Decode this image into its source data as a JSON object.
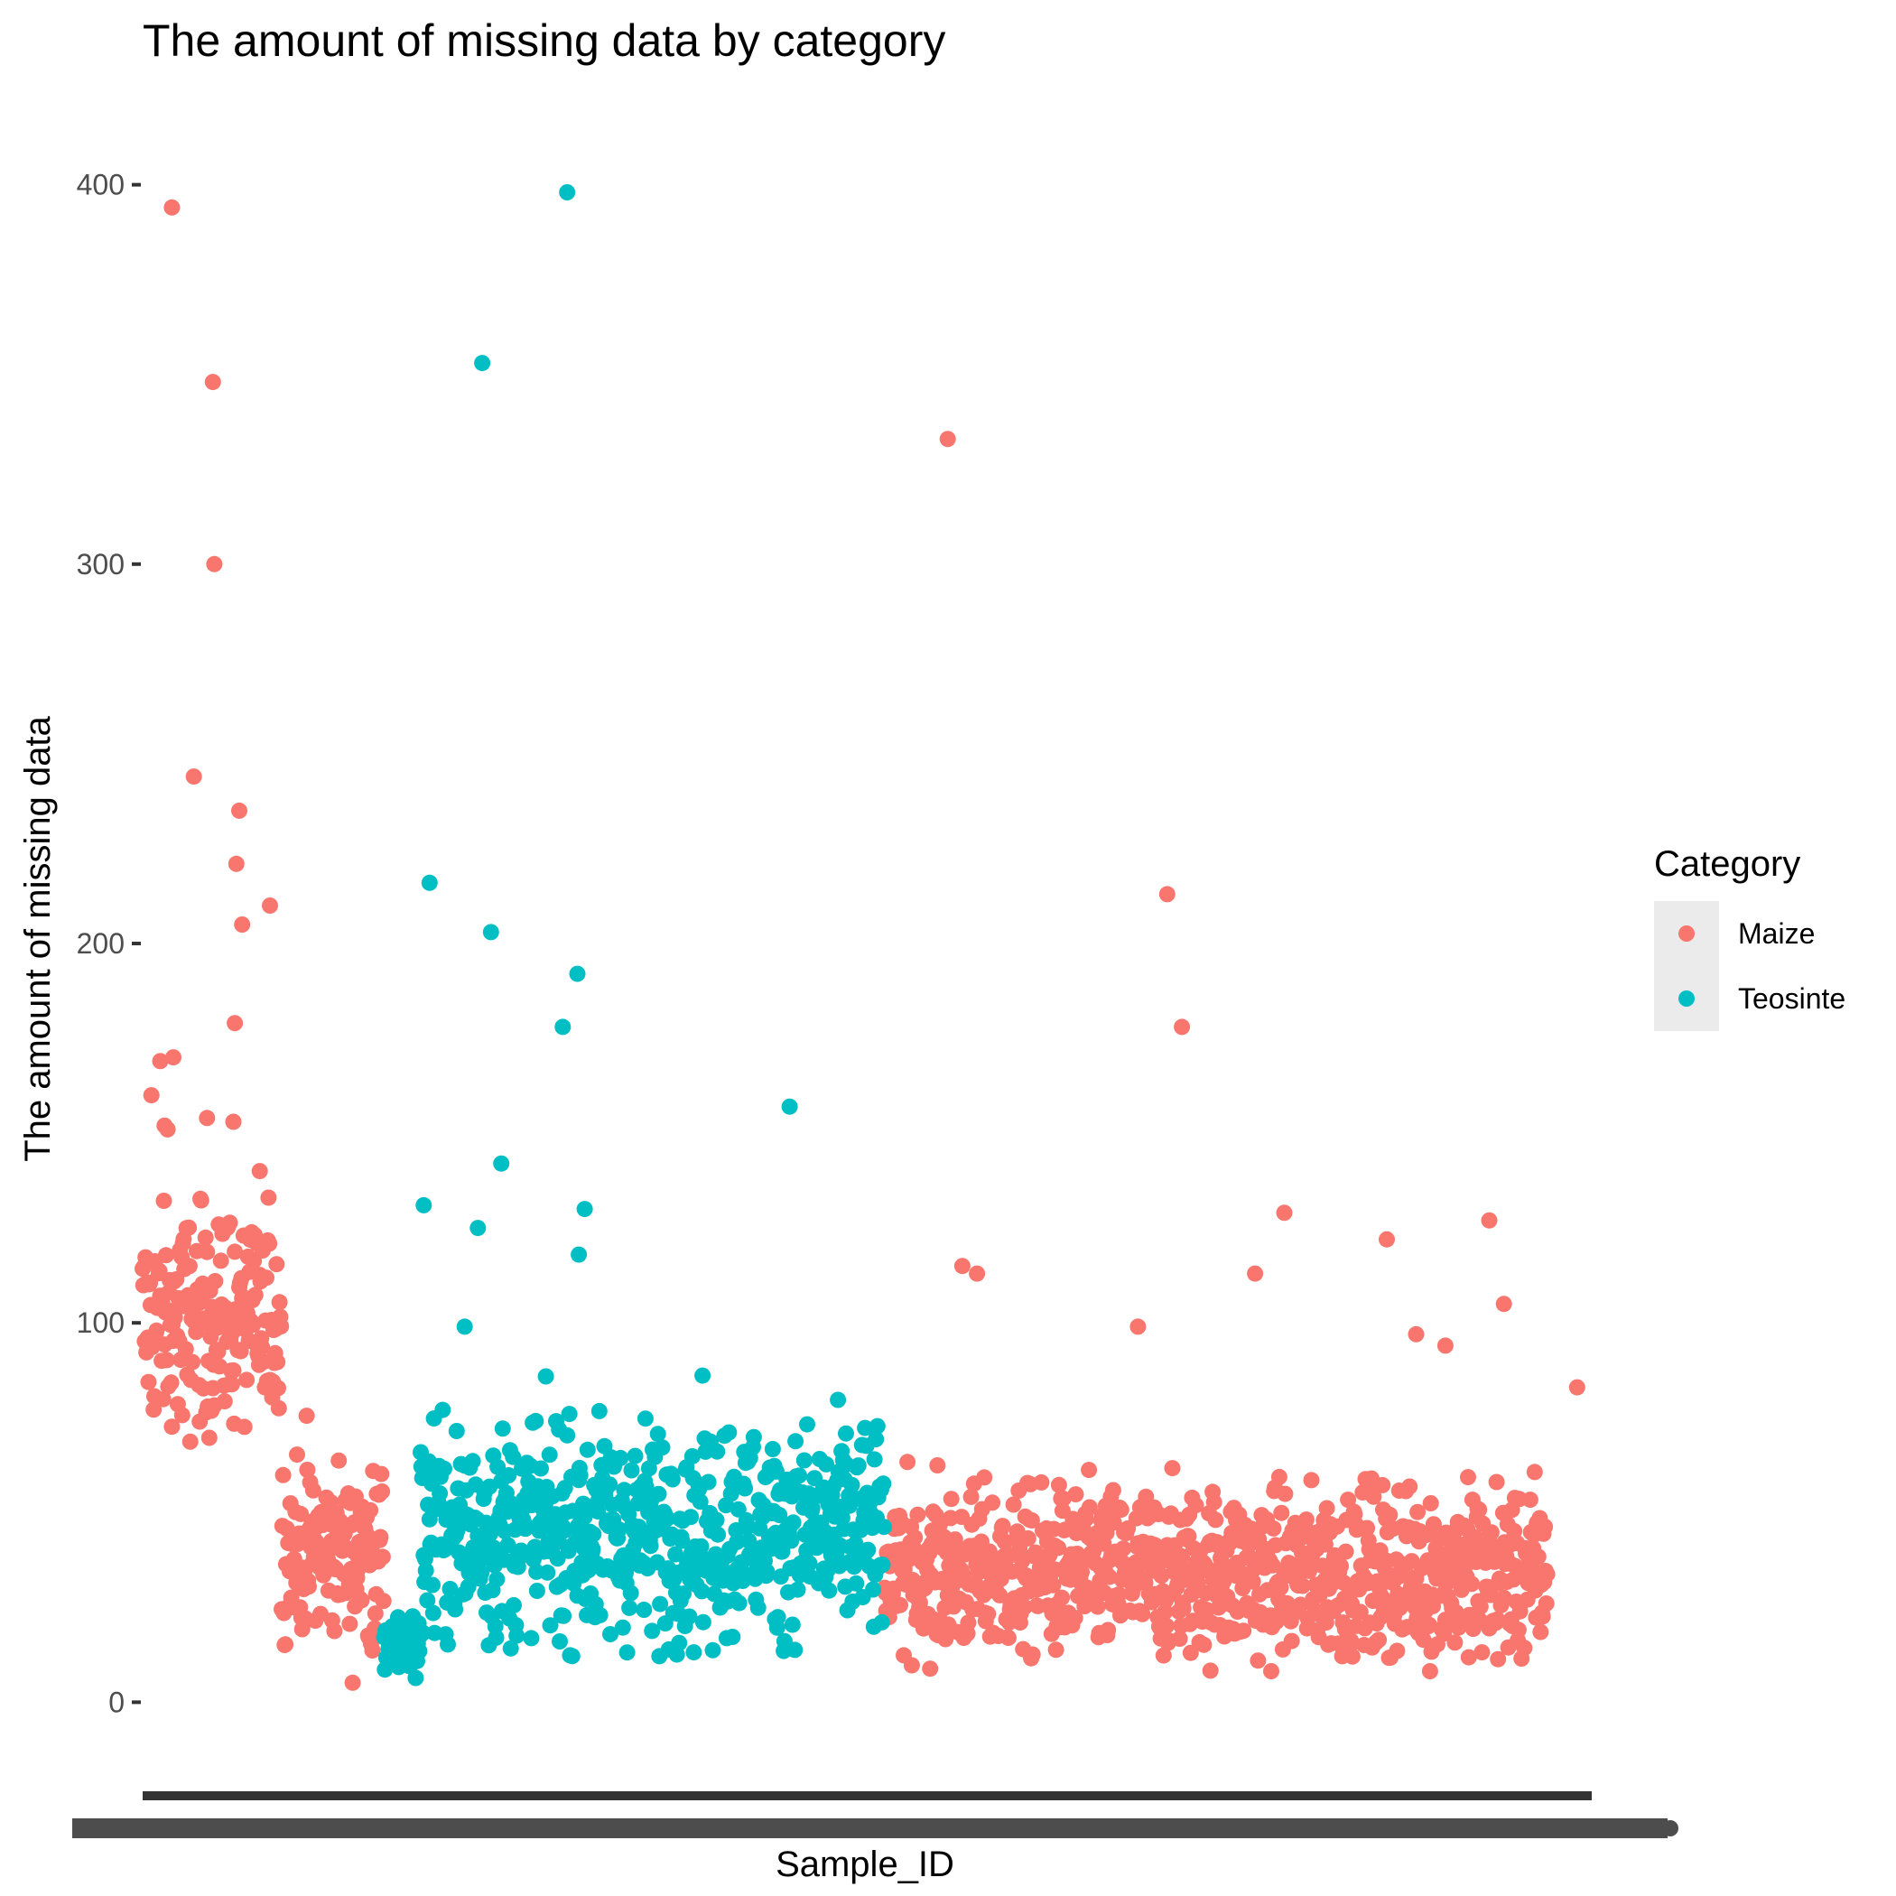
{
  "chart_data": {
    "type": "scatter",
    "title": "The amount of missing data by category",
    "xlabel": "Sample_ID",
    "ylabel": "The amount of missing data",
    "ylim": [
      -13,
      413
    ],
    "yticks": [
      0,
      100,
      200,
      300,
      400
    ],
    "x_tick_labels": "overlapping, unreadable",
    "grid": false,
    "legend": {
      "title": "Category",
      "position": "right",
      "entries": [
        {
          "label": "Maize",
          "color": "#F8766D"
        },
        {
          "label": "Teosinte",
          "color": "#00BFC4"
        }
      ]
    },
    "series": [
      {
        "name": "Maize",
        "color": "#F8766D",
        "segments": [
          {
            "x_from": 0,
            "x_to": 95,
            "center": 100,
            "spread": 28,
            "floor": 68
          },
          {
            "x_from": 95,
            "x_to": 165,
            "center": 40,
            "spread": 24,
            "floor": 5
          },
          {
            "x_from": 507,
            "x_to": 960,
            "center": 34,
            "spread": 22,
            "floor": 8
          }
        ],
        "outliers": [
          [
            20,
            394
          ],
          [
            48,
            348
          ],
          [
            49,
            300
          ],
          [
            35,
            244
          ],
          [
            66,
            235
          ],
          [
            64,
            221
          ],
          [
            68,
            205
          ],
          [
            87,
            210
          ],
          [
            63,
            179
          ],
          [
            21,
            170
          ],
          [
            12,
            169
          ],
          [
            6,
            160
          ],
          [
            44,
            154
          ],
          [
            62,
            153
          ],
          [
            15,
            152
          ],
          [
            17,
            151
          ],
          [
            80,
            140
          ],
          [
            550,
            333
          ],
          [
            700,
            213
          ],
          [
            710,
            178
          ],
          [
            780,
            129
          ],
          [
            920,
            127
          ],
          [
            930,
            105
          ],
          [
            850,
            122
          ],
          [
            760,
            113
          ],
          [
            560,
            115
          ],
          [
            570,
            113
          ],
          [
            680,
            99
          ],
          [
            870,
            97
          ],
          [
            890,
            94
          ],
          [
            980,
            83
          ]
        ]
      },
      {
        "name": "Teosinte",
        "color": "#00BFC4",
        "segments": [
          {
            "x_from": 165,
            "x_to": 190,
            "center": 16,
            "spread": 8,
            "floor": 6
          },
          {
            "x_from": 190,
            "x_to": 507,
            "center": 45,
            "spread": 28,
            "floor": 12
          }
        ],
        "outliers": [
          [
            290,
            398
          ],
          [
            232,
            353
          ],
          [
            196,
            216
          ],
          [
            238,
            203
          ],
          [
            297,
            192
          ],
          [
            287,
            178
          ],
          [
            442,
            157
          ],
          [
            245,
            142
          ],
          [
            192,
            131
          ],
          [
            229,
            125
          ],
          [
            302,
            130
          ],
          [
            298,
            118
          ],
          [
            220,
            99
          ]
        ]
      }
    ]
  }
}
